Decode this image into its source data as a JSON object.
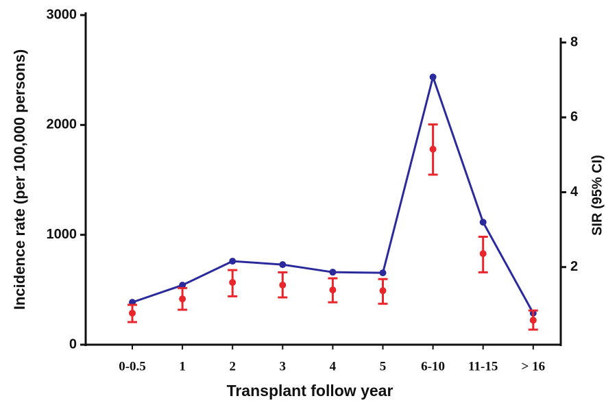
{
  "chart_data": {
    "type": "line_errorbar",
    "x_label": "Transplant follow year",
    "y_label": "Incidence rate (per 100,000 persons)",
    "y2_label": "SIR (95% CI)",
    "categories": [
      "0-0.5",
      "1",
      "2",
      "3",
      "4",
      "5",
      "6-10",
      "11-15",
      "> 16"
    ],
    "ylim": [
      0,
      3000
    ],
    "yticks": [
      0,
      1000,
      2000,
      3000
    ],
    "y2lim": [
      0,
      8
    ],
    "y2ticks": [
      2,
      4,
      6,
      8
    ],
    "series": [
      {
        "color": "#2b2a9c",
        "values": [
          386,
          542,
          760,
          729,
          660,
          654,
          2436,
          1115,
          287
        ]
      },
      {
        "color": "#e8262b",
        "axis": "y2",
        "values": [
          0.77,
          1.15,
          1.59,
          1.52,
          1.39,
          1.37,
          5.15,
          2.36,
          0.58
        ],
        "lower": [
          0.53,
          0.86,
          1.22,
          1.19,
          1.06,
          1.02,
          4.47,
          1.86,
          0.33
        ],
        "upper": [
          0.99,
          1.44,
          1.92,
          1.86,
          1.7,
          1.68,
          5.81,
          2.81,
          0.84
        ]
      }
    ]
  }
}
